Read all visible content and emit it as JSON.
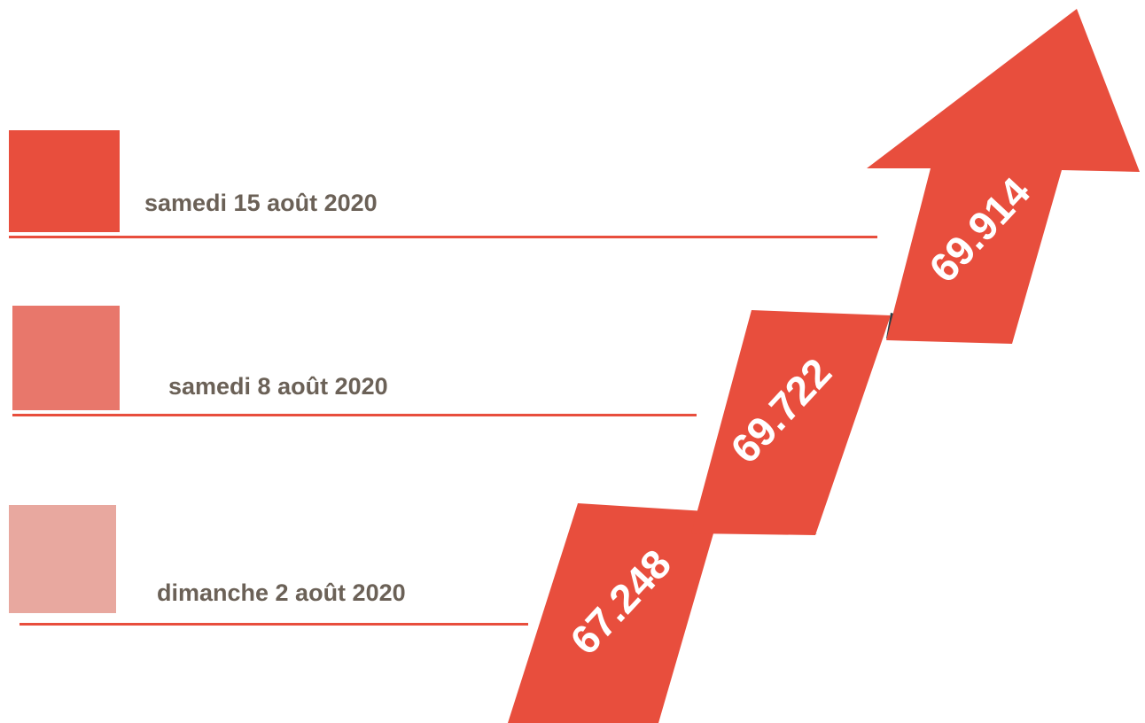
{
  "items": [
    {
      "label": "samedi 15 août 2020",
      "value": "69.914"
    },
    {
      "label": "samedi 8 août 2020",
      "value": "69.722"
    },
    {
      "label": "dimanche 2 août 2020",
      "value": "67.248"
    }
  ]
}
